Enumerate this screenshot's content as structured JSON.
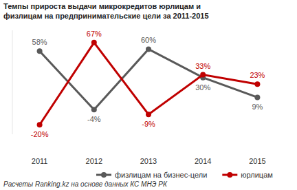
{
  "chart_data": {
    "type": "line",
    "title": "Темпы прироста выдачи микрокредитов юрлицам и физлицам на предпринимательские цели за 2011-2015",
    "source": "Расчеты Ranking.kz на основе данных КС МНЭ РК",
    "categories": [
      "2011",
      "2012",
      "2013",
      "2014",
      "2015"
    ],
    "series": [
      {
        "name": "физлицам на бизнес-цели",
        "color": "#595959",
        "marker": "circle",
        "line_style": "solid",
        "values": [
          58,
          -4,
          60,
          30,
          9
        ],
        "value_labels": [
          "58%",
          "-4%",
          "60%",
          "30%",
          "9%"
        ]
      },
      {
        "name": "юрлицам",
        "color": "#c00000",
        "marker": "circle",
        "line_style": "solid",
        "values": [
          -20,
          67,
          -9,
          33,
          23
        ],
        "value_labels": [
          "-20%",
          "67%",
          "-9%",
          "33%",
          "23%"
        ]
      }
    ],
    "ylim": [
      -30,
      80
    ],
    "grid": false,
    "legend": "bottom",
    "data_labels": true,
    "tick_labels": "x"
  }
}
